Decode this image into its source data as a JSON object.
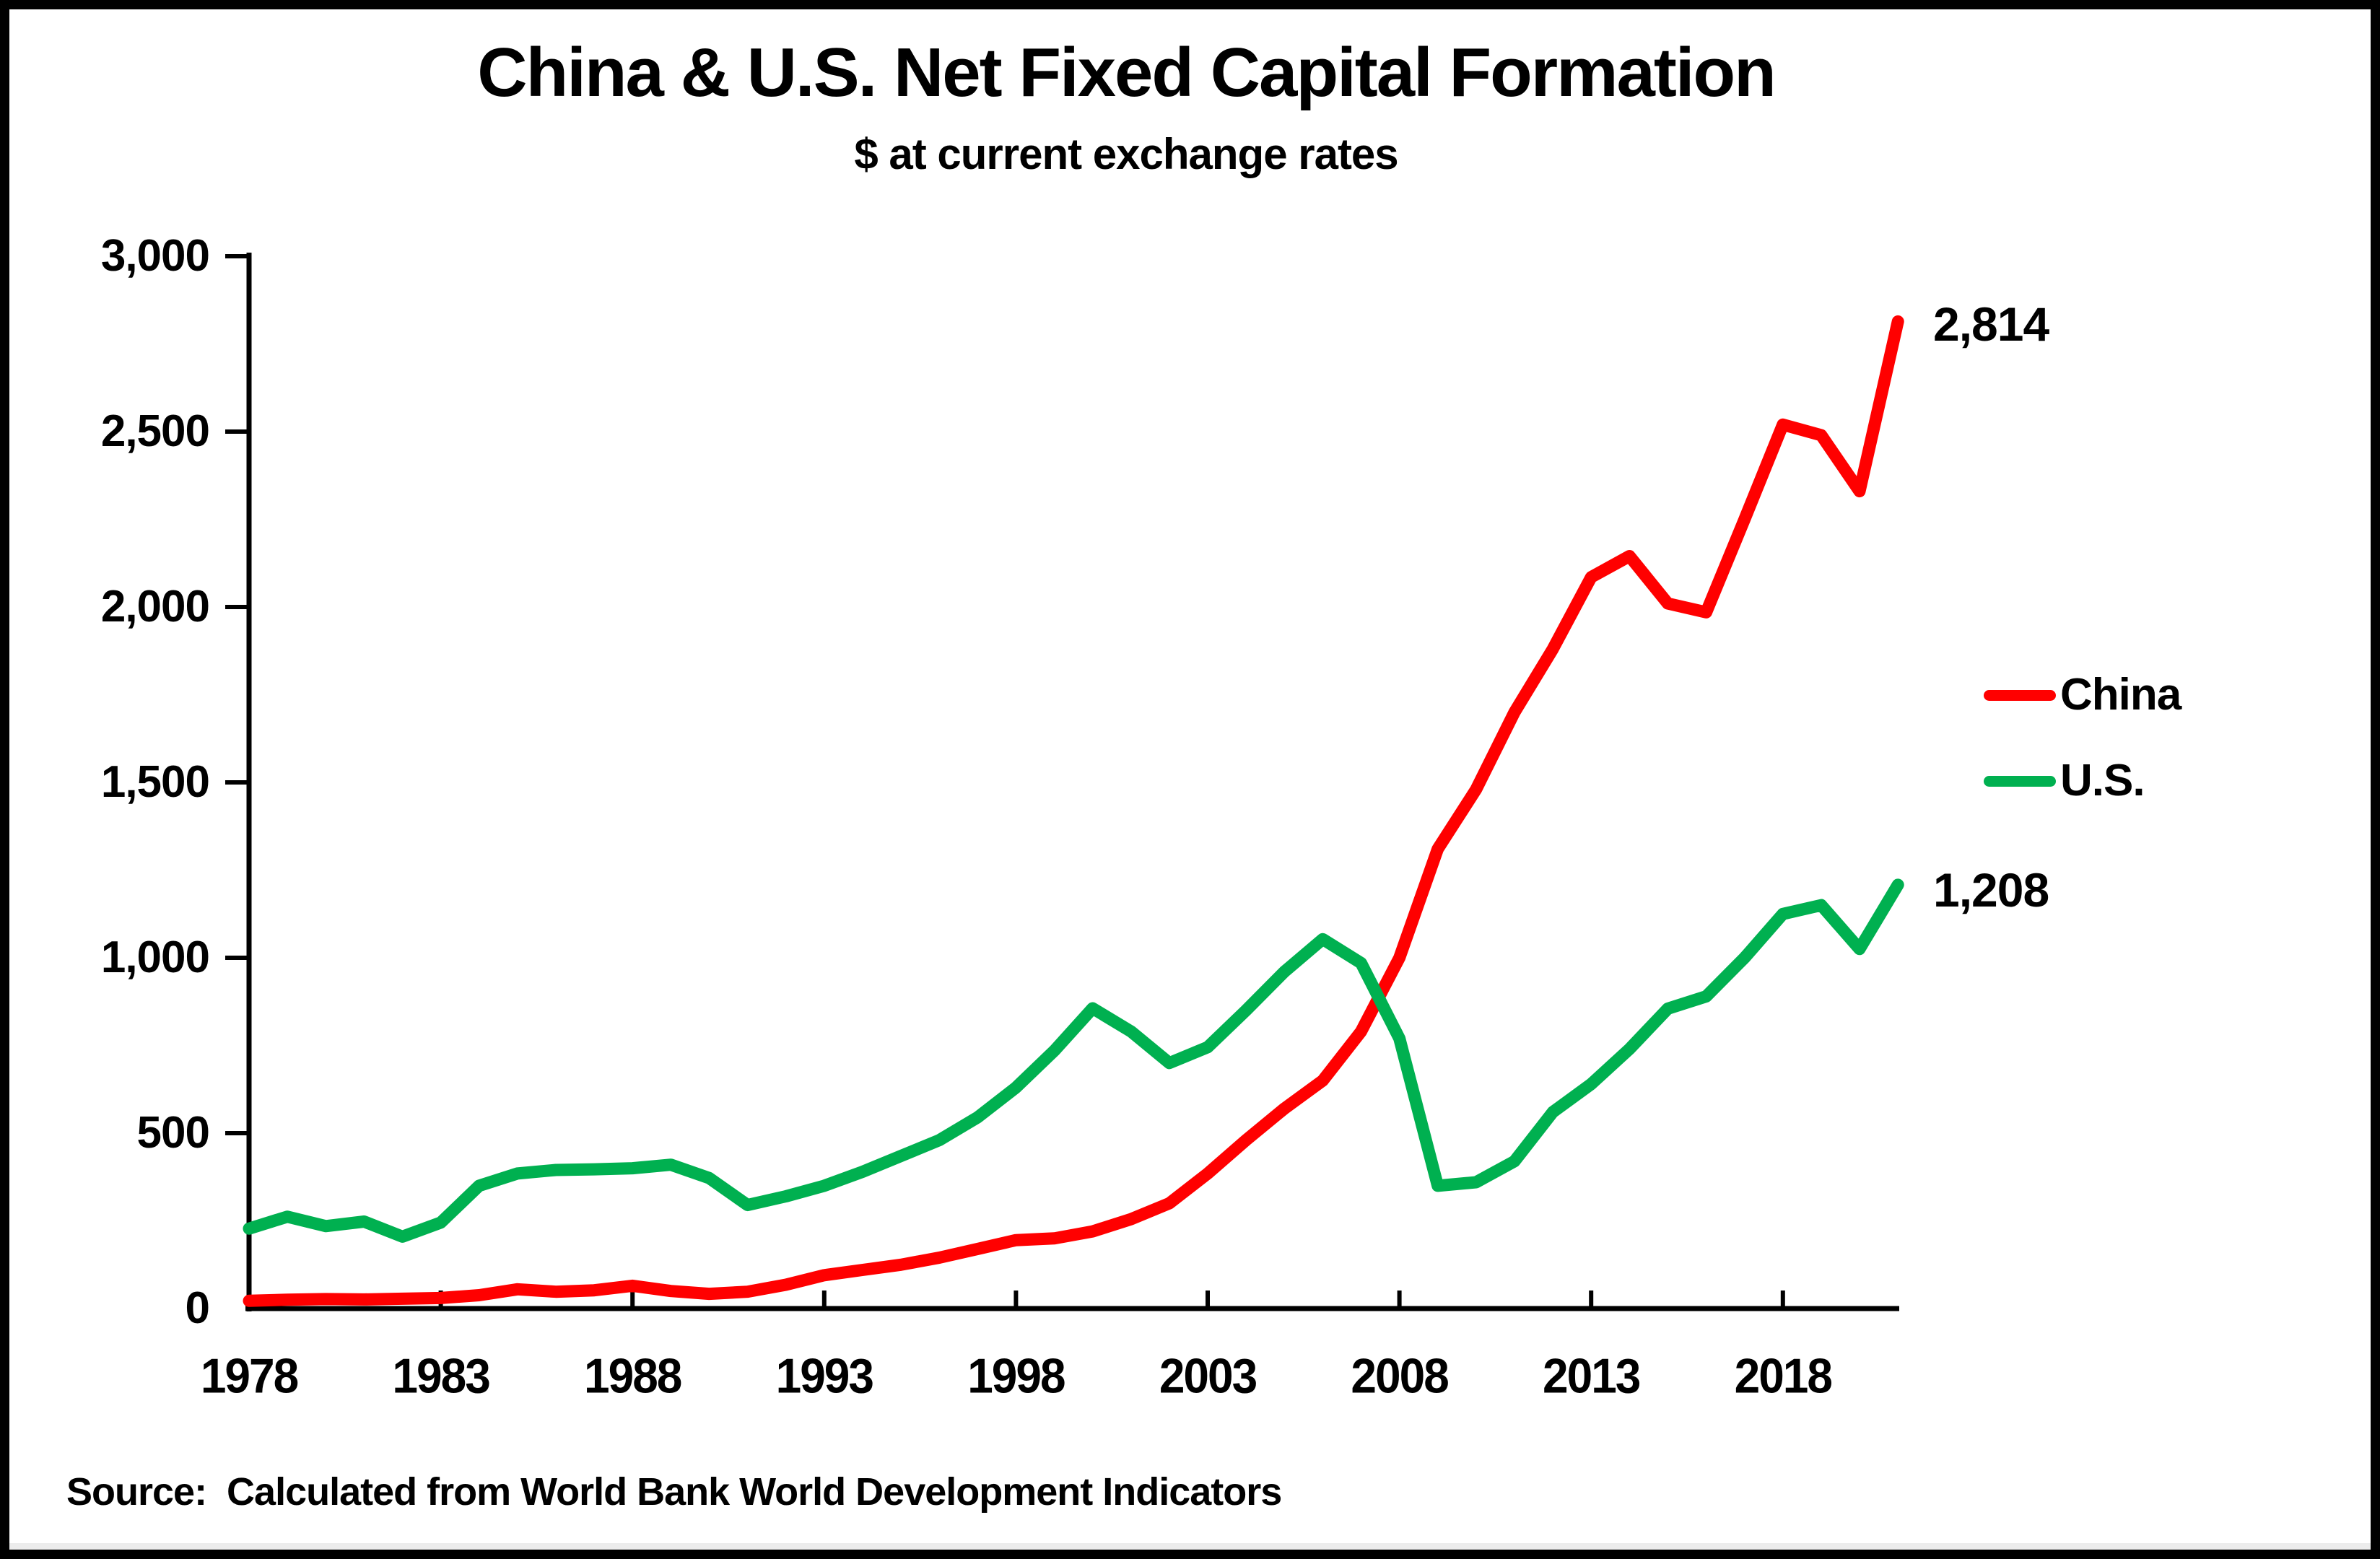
{
  "source": "Source:  Calculated from World Bank World Development Indicators",
  "chart_data": {
    "type": "line",
    "title": "China & U.S. Net Fixed Capital Formation",
    "subtitle": "$ at current exchange rates",
    "xlabel": "",
    "ylabel": "",
    "ylim": [
      0,
      3000
    ],
    "grid": false,
    "legend_position": "right",
    "x": [
      1978,
      1979,
      1980,
      1981,
      1982,
      1983,
      1984,
      1985,
      1986,
      1987,
      1988,
      1989,
      1990,
      1991,
      1992,
      1993,
      1994,
      1995,
      1996,
      1997,
      1998,
      1999,
      2000,
      2001,
      2002,
      2003,
      2004,
      2005,
      2006,
      2007,
      2008,
      2009,
      2010,
      2011,
      2012,
      2013,
      2014,
      2015,
      2016,
      2017,
      2018,
      2019,
      2020,
      2021
    ],
    "series": [
      {
        "name": "China",
        "color": "#ff0000",
        "end_label": "2,814",
        "values": [
          22,
          25,
          27,
          26,
          28,
          30,
          38,
          55,
          48,
          52,
          65,
          50,
          42,
          48,
          68,
          95,
          110,
          125,
          145,
          170,
          195,
          200,
          220,
          255,
          300,
          385,
          480,
          570,
          650,
          790,
          1000,
          1310,
          1480,
          1700,
          1880,
          2085,
          2145,
          2010,
          1985,
          2250,
          2520,
          2490,
          2330,
          2814
        ]
      },
      {
        "name": "U.S.",
        "color": "#00b050",
        "end_label": "1,208",
        "values": [
          228,
          262,
          235,
          248,
          205,
          245,
          350,
          385,
          395,
          397,
          400,
          410,
          372,
          295,
          320,
          350,
          390,
          435,
          480,
          545,
          630,
          735,
          856,
          790,
          700,
          745,
          850,
          960,
          1053,
          985,
          770,
          350,
          360,
          420,
          560,
          640,
          740,
          855,
          890,
          1000,
          1125,
          1150,
          1025,
          1208
        ]
      }
    ],
    "y_tick_values": [
      0,
      500,
      1000,
      1500,
      2000,
      2500,
      3000
    ],
    "y_tick_labels": [
      "0",
      "500",
      "1,000",
      "1,500",
      "2,000",
      "2,500",
      "3,000"
    ],
    "x_tick_years": [
      1978,
      1983,
      1988,
      1993,
      1998,
      2003,
      2008,
      2013,
      2018
    ],
    "x_tick_labels": [
      "1978",
      "1983",
      "1988",
      "1993",
      "1998",
      "2003",
      "2008",
      "2013",
      "2018"
    ]
  }
}
